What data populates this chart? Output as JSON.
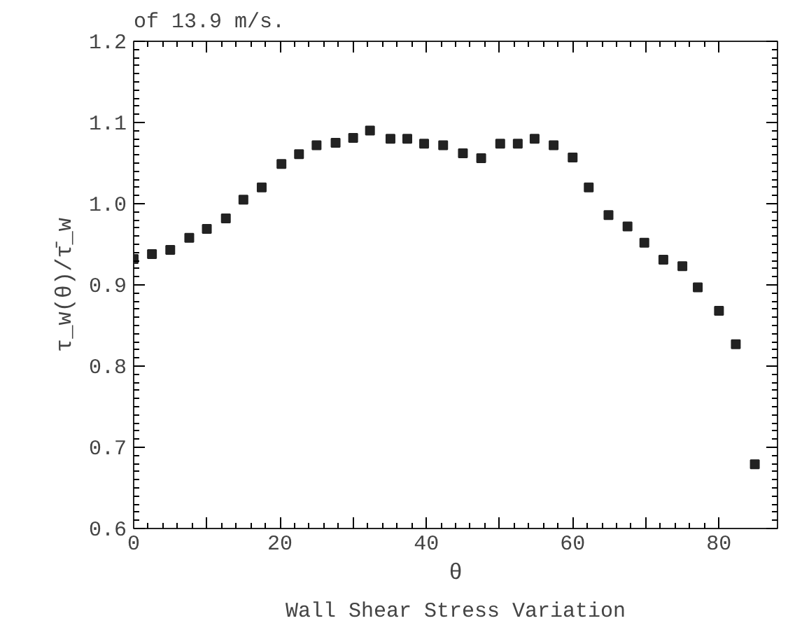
{
  "chart_data": {
    "type": "scatter",
    "xlabel": "θ",
    "ylabel": "τ_w(θ)/τ̄_w",
    "annotations": [
      "of 13.9 m/s.",
      "Wall Shear Stress Variation"
    ],
    "x": [
      0,
      2.5,
      5,
      7.6,
      10,
      12.6,
      15,
      17.5,
      20.2,
      22.6,
      25,
      27.6,
      30,
      32.3,
      35.1,
      37.4,
      39.7,
      42.3,
      45,
      47.5,
      50.1,
      52.5,
      54.8,
      57.4,
      60,
      62.2,
      64.9,
      67.5,
      69.8,
      72.4,
      75,
      77.1,
      80,
      82.3,
      84.9
    ],
    "series": [
      {
        "color": "#222222",
        "values": [
          0.932,
          0.938,
          0.943,
          0.958,
          0.969,
          0.982,
          1.005,
          1.02,
          1.049,
          1.061,
          1.072,
          1.075,
          1.081,
          1.09,
          1.08,
          1.08,
          1.074,
          1.072,
          1.062,
          1.056,
          1.074,
          1.074,
          1.08,
          1.072,
          1.057,
          1.02,
          0.986,
          0.972,
          0.952,
          0.931,
          0.923,
          0.897,
          0.868,
          0.827,
          0.679
        ]
      }
    ],
    "xlim": [
      0,
      88
    ],
    "ylim": [
      0.6,
      1.2
    ],
    "xticks": [
      0,
      {
        "value": 10,
        "label": null
      },
      20,
      {
        "value": 30,
        "label": null
      },
      40,
      {
        "value": 50,
        "label": null
      },
      60,
      {
        "value": 70,
        "label": null
      },
      80
    ],
    "yticks": [
      0.6,
      0.7,
      0.8,
      0.9,
      {
        "value": 1,
        "label": "1.0"
      },
      1.1,
      1.2
    ],
    "marker": "square",
    "grid": false
  }
}
